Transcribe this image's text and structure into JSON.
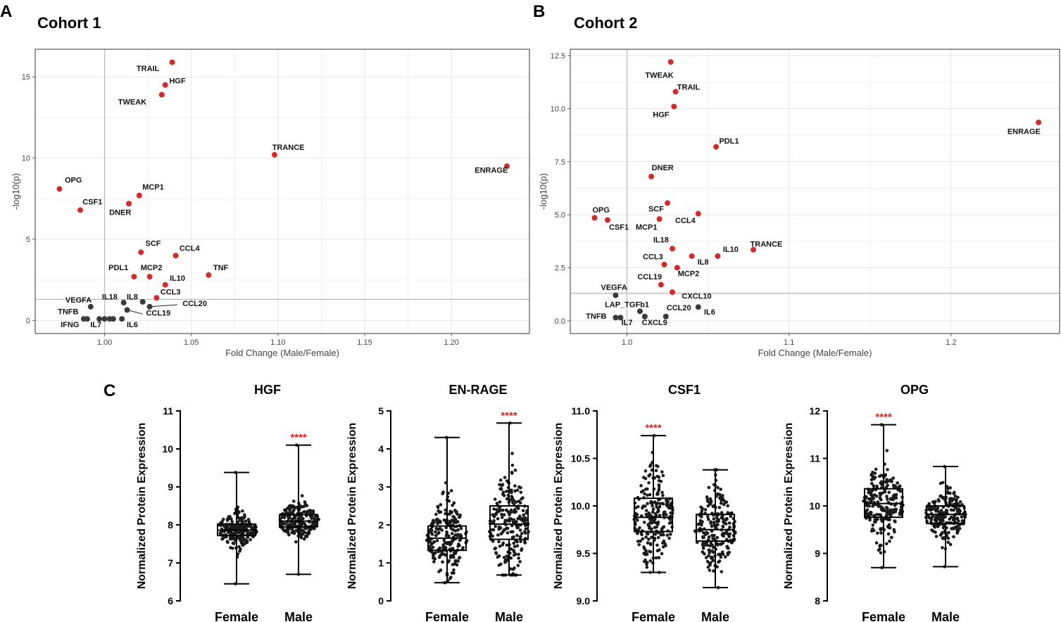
{
  "colors": {
    "sig": "#d42a2a",
    "nonsig": "#3a3a3a",
    "grid": "#e6e6e6",
    "ref": "#b8b8b8",
    "star": "#e02020"
  },
  "panels": {
    "a": {
      "letter": "A",
      "title": "Cohort 1"
    },
    "b": {
      "letter": "B",
      "title": "Cohort 2"
    },
    "c": {
      "letter": "C"
    }
  },
  "chart_data": [
    {
      "id": "cohort1",
      "type": "scatter",
      "title": "Cohort 1",
      "xlabel": "Fold Change (Male/Female)",
      "ylabel": "-log10(p)",
      "xlim": [
        0.96,
        1.245
      ],
      "ylim": [
        -0.8,
        16.7
      ],
      "xticks": [
        1.0,
        1.05,
        1.1,
        1.15,
        1.2
      ],
      "xtick_labels": [
        "1.00",
        "1.05",
        "1.10",
        "1.15",
        "1.20"
      ],
      "yticks": [
        0,
        5,
        10,
        15
      ],
      "ytick_labels": [
        "0",
        "5",
        "10",
        "15"
      ],
      "threshold": 1.3,
      "points": [
        {
          "x": 1.039,
          "y": 15.9,
          "sig": true
        },
        {
          "x": 1.035,
          "y": 14.5,
          "sig": true
        },
        {
          "x": 1.033,
          "y": 13.9,
          "sig": true
        },
        {
          "x": 1.098,
          "y": 10.2,
          "sig": true
        },
        {
          "x": 1.232,
          "y": 9.5,
          "sig": true
        },
        {
          "x": 0.974,
          "y": 8.1,
          "sig": true
        },
        {
          "x": 1.02,
          "y": 7.7,
          "sig": true
        },
        {
          "x": 1.014,
          "y": 7.2,
          "sig": true
        },
        {
          "x": 0.986,
          "y": 6.8,
          "sig": true
        },
        {
          "x": 1.021,
          "y": 4.2,
          "sig": true
        },
        {
          "x": 1.041,
          "y": 4.0,
          "sig": true
        },
        {
          "x": 1.06,
          "y": 2.8,
          "sig": true
        },
        {
          "x": 1.017,
          "y": 2.7,
          "sig": true
        },
        {
          "x": 1.026,
          "y": 2.7,
          "sig": true
        },
        {
          "x": 1.035,
          "y": 2.2,
          "sig": true
        },
        {
          "x": 1.03,
          "y": 1.4,
          "sig": true
        },
        {
          "x": 1.011,
          "y": 1.1,
          "sig": false
        },
        {
          "x": 1.022,
          "y": 1.15,
          "sig": false
        },
        {
          "x": 0.992,
          "y": 0.85,
          "sig": false
        },
        {
          "x": 1.026,
          "y": 0.85,
          "sig": false
        },
        {
          "x": 1.013,
          "y": 0.65,
          "sig": false
        },
        {
          "x": 0.988,
          "y": 0.1,
          "sig": false
        },
        {
          "x": 0.99,
          "y": 0.1,
          "sig": false
        },
        {
          "x": 0.997,
          "y": 0.1,
          "sig": false
        },
        {
          "x": 1.0,
          "y": 0.1,
          "sig": false
        },
        {
          "x": 1.003,
          "y": 0.1,
          "sig": false
        },
        {
          "x": 1.005,
          "y": 0.1,
          "sig": false
        },
        {
          "x": 1.01,
          "y": 0.1,
          "sig": false
        }
      ],
      "labels": [
        {
          "text": "TRAIL",
          "x": 1.025,
          "y": 15.35
        },
        {
          "text": "HGF",
          "x": 1.042,
          "y": 14.6
        },
        {
          "text": "TWEAK",
          "x": 1.016,
          "y": 13.3
        },
        {
          "text": "TRANCE",
          "x": 1.106,
          "y": 10.5
        },
        {
          "text": "ENRAGE",
          "x": 1.223,
          "y": 9.1
        },
        {
          "text": "OPG",
          "x": 0.982,
          "y": 8.5
        },
        {
          "text": "MCP1",
          "x": 1.028,
          "y": 8.05
        },
        {
          "text": "CSF1",
          "x": 0.993,
          "y": 7.15
        },
        {
          "text": "DNER",
          "x": 1.009,
          "y": 6.5
        },
        {
          "text": "SCF",
          "x": 1.028,
          "y": 4.6
        },
        {
          "text": "CCL4",
          "x": 1.049,
          "y": 4.3
        },
        {
          "text": "TNF",
          "x": 1.067,
          "y": 3.1
        },
        {
          "text": "PDL1",
          "x": 1.008,
          "y": 3.1
        },
        {
          "text": "MCP2",
          "x": 1.027,
          "y": 3.1
        },
        {
          "text": "IL10",
          "x": 1.042,
          "y": 2.45
        },
        {
          "text": "CCL3",
          "x": 1.038,
          "y": 1.6
        },
        {
          "text": "IL18",
          "x": 1.003,
          "y": 1.3
        },
        {
          "text": "IL8",
          "x": 1.016,
          "y": 1.3
        },
        {
          "text": "VEGFA",
          "x": 0.985,
          "y": 1.1
        },
        {
          "text": "CCL20",
          "x": 1.052,
          "y": 0.9
        },
        {
          "text": "TNFB",
          "x": 0.979,
          "y": 0.4
        },
        {
          "text": "CCL19",
          "x": 1.031,
          "y": 0.3
        },
        {
          "text": "IFNG",
          "x": 0.98,
          "y": -0.4
        },
        {
          "text": "IL7",
          "x": 0.995,
          "y": -0.4
        },
        {
          "text": "IL6",
          "x": 1.016,
          "y": -0.4
        }
      ],
      "leaders": [
        {
          "x1": 1.026,
          "y1": 0.85,
          "x2": 1.042,
          "y2": 0.97
        },
        {
          "x1": 1.013,
          "y1": 0.65,
          "x2": 1.022,
          "y2": 0.4
        }
      ]
    },
    {
      "id": "cohort2",
      "type": "scatter",
      "title": "Cohort 2",
      "xlabel": "Fold Change (Male/Female)",
      "ylabel": "-log10(p)",
      "xlim": [
        0.965,
        1.267
      ],
      "ylim": [
        -0.6,
        12.8
      ],
      "xticks": [
        1.0,
        1.1,
        1.2
      ],
      "xtick_labels": [
        "1.0",
        "1.1",
        "1.2"
      ],
      "yticks": [
        0.0,
        2.5,
        5.0,
        7.5,
        10.0,
        12.5
      ],
      "ytick_labels": [
        "0.0",
        "2.5",
        "5.0",
        "7.5",
        "10.0",
        "12.5"
      ],
      "threshold": 1.3,
      "points": [
        {
          "x": 1.027,
          "y": 12.2,
          "sig": true
        },
        {
          "x": 1.03,
          "y": 10.8,
          "sig": true
        },
        {
          "x": 1.029,
          "y": 10.1,
          "sig": true
        },
        {
          "x": 1.254,
          "y": 9.35,
          "sig": true
        },
        {
          "x": 1.055,
          "y": 8.2,
          "sig": true
        },
        {
          "x": 1.015,
          "y": 6.8,
          "sig": true
        },
        {
          "x": 1.025,
          "y": 5.55,
          "sig": true
        },
        {
          "x": 1.044,
          "y": 5.05,
          "sig": true
        },
        {
          "x": 0.98,
          "y": 4.85,
          "sig": true
        },
        {
          "x": 0.988,
          "y": 4.75,
          "sig": true
        },
        {
          "x": 1.02,
          "y": 4.8,
          "sig": true
        },
        {
          "x": 1.028,
          "y": 3.4,
          "sig": true
        },
        {
          "x": 1.078,
          "y": 3.35,
          "sig": true
        },
        {
          "x": 1.04,
          "y": 3.05,
          "sig": true
        },
        {
          "x": 1.056,
          "y": 3.05,
          "sig": true
        },
        {
          "x": 1.023,
          "y": 2.65,
          "sig": true
        },
        {
          "x": 1.031,
          "y": 2.5,
          "sig": true
        },
        {
          "x": 1.021,
          "y": 1.7,
          "sig": true
        },
        {
          "x": 1.028,
          "y": 1.35,
          "sig": true
        },
        {
          "x": 0.993,
          "y": 1.2,
          "sig": false
        },
        {
          "x": 1.044,
          "y": 0.65,
          "sig": false
        },
        {
          "x": 1.008,
          "y": 0.45,
          "sig": false
        },
        {
          "x": 0.993,
          "y": 0.15,
          "sig": false
        },
        {
          "x": 0.996,
          "y": 0.15,
          "sig": false
        },
        {
          "x": 1.011,
          "y": 0.2,
          "sig": false
        },
        {
          "x": 1.024,
          "y": 0.2,
          "sig": false
        }
      ],
      "labels": [
        {
          "text": "TWEAK",
          "x": 1.02,
          "y": 11.45
        },
        {
          "text": "TRAIL",
          "x": 1.038,
          "y": 10.9
        },
        {
          "text": "HGF",
          "x": 1.021,
          "y": 9.6
        },
        {
          "text": "ENRAGE",
          "x": 1.245,
          "y": 8.8
        },
        {
          "text": "PDL1",
          "x": 1.063,
          "y": 8.35
        },
        {
          "text": "DNER",
          "x": 1.022,
          "y": 7.1
        },
        {
          "text": "OPG",
          "x": 0.984,
          "y": 5.1
        },
        {
          "text": "SCF",
          "x": 1.018,
          "y": 5.15
        },
        {
          "text": "CSF1",
          "x": 0.995,
          "y": 4.3
        },
        {
          "text": "MCP1",
          "x": 1.012,
          "y": 4.3
        },
        {
          "text": "CCL4",
          "x": 1.036,
          "y": 4.6
        },
        {
          "text": "IL18",
          "x": 1.021,
          "y": 3.7
        },
        {
          "text": "TRANCE",
          "x": 1.086,
          "y": 3.5
        },
        {
          "text": "IL10",
          "x": 1.064,
          "y": 3.25
        },
        {
          "text": "CCL3",
          "x": 1.016,
          "y": 2.9
        },
        {
          "text": "IL8",
          "x": 1.047,
          "y": 2.65
        },
        {
          "text": "MCP2",
          "x": 1.038,
          "y": 2.1
        },
        {
          "text": "CCL19",
          "x": 1.014,
          "y": 1.95
        },
        {
          "text": "VEGFA",
          "x": 0.992,
          "y": 1.45
        },
        {
          "text": "CXCL10",
          "x": 1.043,
          "y": 1.05
        },
        {
          "text": "LAP_TGFb1",
          "x": 1.0,
          "y": 0.65
        },
        {
          "text": "CCL20",
          "x": 1.032,
          "y": 0.5
        },
        {
          "text": "IL6",
          "x": 1.051,
          "y": 0.3
        },
        {
          "text": "TNFB",
          "x": 0.981,
          "y": 0.1
        },
        {
          "text": "IL7",
          "x": 1.0,
          "y": -0.2
        },
        {
          "text": "CXCL9",
          "x": 1.017,
          "y": -0.2
        }
      ],
      "leaders": []
    },
    {
      "id": "hgf",
      "type": "box",
      "title": "HGF",
      "ylabel": "Normalized Protein Expression",
      "ylim": [
        6,
        11
      ],
      "yticks": [
        6,
        7,
        8,
        9,
        10,
        11
      ],
      "ytick_labels": [
        "6",
        "7",
        "8",
        "9",
        "10",
        "11"
      ],
      "categories": [
        "Female",
        "Male"
      ],
      "significance": "****",
      "sig_group": "Male",
      "groups": [
        {
          "name": "Female",
          "min": 6.45,
          "q1": 7.72,
          "median": 7.86,
          "q3": 8.02,
          "max": 9.38
        },
        {
          "name": "Male",
          "min": 6.7,
          "q1": 7.95,
          "median": 8.1,
          "q3": 8.27,
          "max": 10.1
        }
      ]
    },
    {
      "id": "enrage",
      "type": "box",
      "title": "EN-RAGE",
      "ylabel": "Normalized Protein Expression",
      "ylim": [
        0,
        5
      ],
      "yticks": [
        0,
        1,
        2,
        3,
        4,
        5
      ],
      "ytick_labels": [
        "0",
        "1",
        "2",
        "3",
        "4",
        "5"
      ],
      "categories": [
        "Female",
        "Male"
      ],
      "significance": "****",
      "sig_group": "Male",
      "groups": [
        {
          "name": "Female",
          "min": 0.48,
          "q1": 1.33,
          "median": 1.65,
          "q3": 1.97,
          "max": 4.3
        },
        {
          "name": "Male",
          "min": 0.68,
          "q1": 1.62,
          "median": 2.02,
          "q3": 2.5,
          "max": 4.68
        }
      ]
    },
    {
      "id": "csf1",
      "type": "box",
      "title": "CSF1",
      "ylabel": "Normalized Protein Expression",
      "ylim": [
        9.0,
        11.0
      ],
      "yticks": [
        9.0,
        9.5,
        10.0,
        10.5,
        11.0
      ],
      "ytick_labels": [
        "9.0",
        "9.5",
        "10.0",
        "10.5",
        "11.0"
      ],
      "categories": [
        "Female",
        "Male"
      ],
      "significance": "****",
      "sig_group": "Female",
      "groups": [
        {
          "name": "Female",
          "min": 9.3,
          "q1": 9.73,
          "median": 9.88,
          "q3": 10.08,
          "max": 10.74
        },
        {
          "name": "Male",
          "min": 9.14,
          "q1": 9.63,
          "median": 9.75,
          "q3": 9.91,
          "max": 10.38
        }
      ]
    },
    {
      "id": "opg",
      "type": "box",
      "title": "OPG",
      "ylabel": "Normalized Protein Expression",
      "ylim": [
        8,
        12
      ],
      "yticks": [
        8,
        9,
        10,
        11,
        12
      ],
      "ytick_labels": [
        "8",
        "9",
        "10",
        "11",
        "12"
      ],
      "categories": [
        "Female",
        "Male"
      ],
      "significance": "****",
      "sig_group": "Female",
      "groups": [
        {
          "name": "Female",
          "min": 8.7,
          "q1": 9.76,
          "median": 10.05,
          "q3": 10.36,
          "max": 11.71
        },
        {
          "name": "Male",
          "min": 8.72,
          "q1": 9.63,
          "median": 9.82,
          "q3": 10.0,
          "max": 10.83
        }
      ]
    }
  ]
}
